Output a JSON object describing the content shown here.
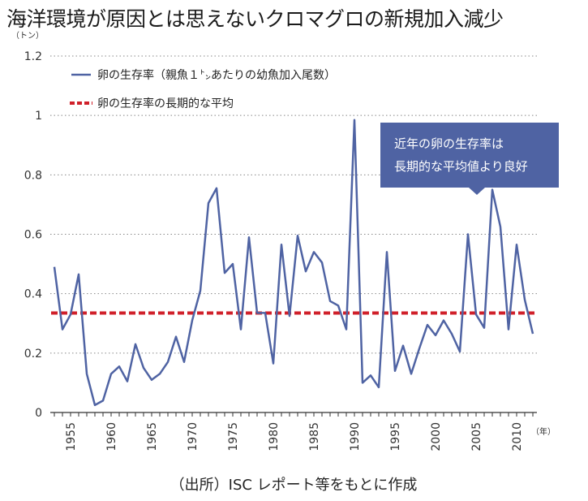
{
  "chart_data": {
    "type": "line",
    "title": "海洋環境が原因とは思えないクロマグロの新規加入減少",
    "ylabel": "（トン）",
    "xlabel": "（年）",
    "ylim": [
      0,
      1.2
    ],
    "xlim": [
      1952.5,
      2012.5
    ],
    "y_ticks": [
      0,
      0.2,
      0.4,
      0.6,
      0.8,
      1,
      1.2
    ],
    "y_tick_labels": [
      "0",
      "0.2",
      "0.4",
      "0.6",
      "0.8",
      "1",
      "1.2"
    ],
    "x_ticks": [
      1955,
      1960,
      1965,
      1970,
      1975,
      1980,
      1985,
      1990,
      1995,
      2000,
      2005,
      2010
    ],
    "grid": "horizontal-dotted",
    "legend_position": "top-left",
    "series": [
      {
        "name": "卵の生存率（親魚１㌧あたりの幼魚加入尾数）",
        "color": "#4f63a3",
        "style": "solid",
        "x": [
          1953,
          1954,
          1955,
          1956,
          1957,
          1958,
          1959,
          1960,
          1961,
          1962,
          1963,
          1964,
          1965,
          1966,
          1967,
          1968,
          1969,
          1970,
          1971,
          1972,
          1973,
          1974,
          1975,
          1976,
          1977,
          1978,
          1979,
          1980,
          1981,
          1982,
          1983,
          1984,
          1985,
          1986,
          1987,
          1988,
          1989,
          1990,
          1991,
          1992,
          1993,
          1994,
          1995,
          1996,
          1997,
          1998,
          1999,
          2000,
          2001,
          2002,
          2003,
          2004,
          2005,
          2006,
          2007,
          2008,
          2009,
          2010,
          2011,
          2012
        ],
        "values": [
          0.49,
          0.28,
          0.33,
          0.465,
          0.13,
          0.025,
          0.04,
          0.13,
          0.155,
          0.105,
          0.23,
          0.15,
          0.11,
          0.13,
          0.17,
          0.255,
          0.17,
          0.31,
          0.41,
          0.705,
          0.755,
          0.47,
          0.5,
          0.28,
          0.59,
          0.335,
          0.335,
          0.165,
          0.565,
          0.325,
          0.595,
          0.475,
          0.54,
          0.505,
          0.375,
          0.36,
          0.28,
          0.985,
          0.1,
          0.125,
          0.085,
          0.54,
          0.14,
          0.225,
          0.13,
          0.215,
          0.295,
          0.26,
          0.31,
          0.265,
          0.205,
          0.6,
          0.33,
          0.285,
          0.75,
          0.625,
          0.28,
          0.565,
          0.38,
          0.265
        ]
      },
      {
        "name": "卵の生存率の長期的な平均",
        "color": "#d0202a",
        "style": "dashed",
        "x": [
          1953,
          2012
        ],
        "values": [
          0.335,
          0.335
        ]
      }
    ],
    "annotations": [
      {
        "text_lines": [
          "近年の卵の生存率は",
          "長期的な平均値より良好"
        ],
        "points_to_x": 2007
      }
    ]
  },
  "source_note": "（出所）ISC レポート等をもとに作成"
}
